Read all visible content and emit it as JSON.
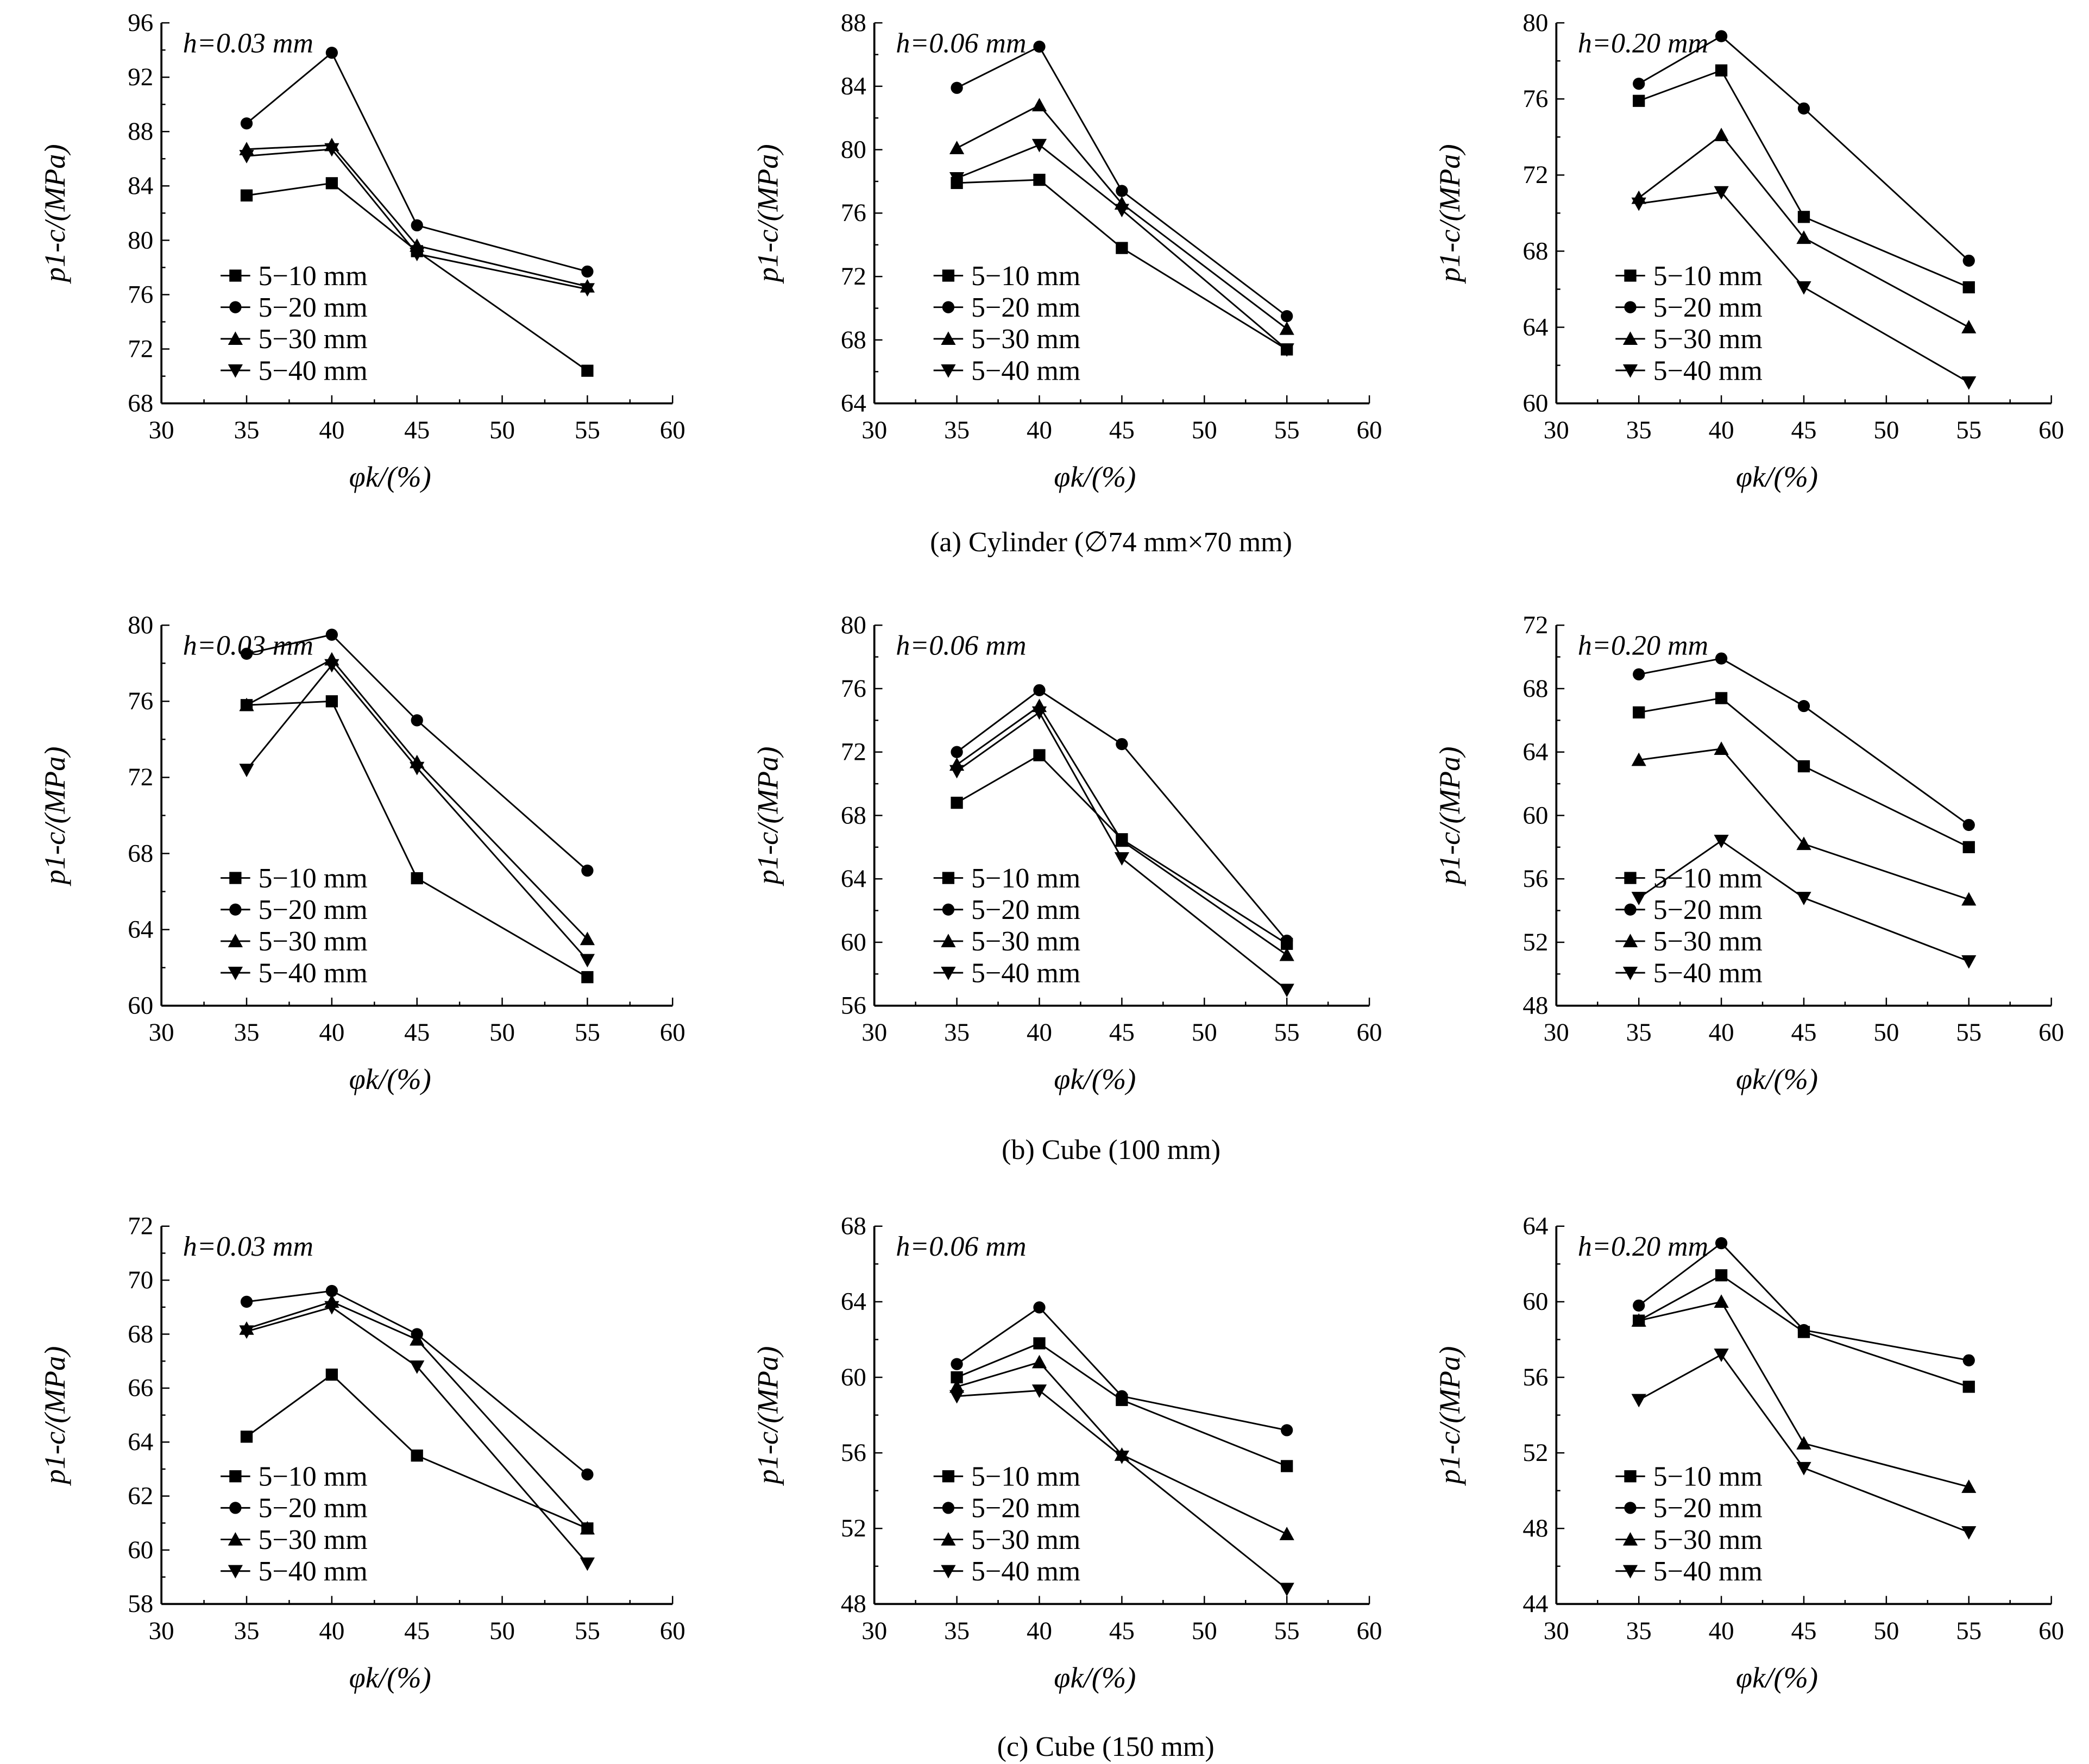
{
  "chart_data": [
    {
      "type": "line",
      "row": 0,
      "annotation": "h=0.03 mm",
      "ylim": [
        68,
        96
      ],
      "yticks": [
        68,
        72,
        76,
        80,
        84,
        88,
        92,
        96
      ],
      "series": [
        {
          "name": "5−10 mm",
          "values": [
            83.3,
            84.2,
            79.2,
            70.4
          ]
        },
        {
          "name": "5−20 mm",
          "values": [
            88.6,
            93.8,
            81.1,
            77.7
          ]
        },
        {
          "name": "5−30 mm",
          "values": [
            86.7,
            87.0,
            79.6,
            76.6
          ]
        },
        {
          "name": "5−40 mm",
          "values": [
            86.2,
            86.7,
            79.0,
            76.4
          ]
        }
      ]
    },
    {
      "type": "line",
      "row": 0,
      "annotation": "h=0.06 mm",
      "ylim": [
        64,
        88
      ],
      "yticks": [
        64,
        68,
        72,
        76,
        80,
        84,
        88
      ],
      "series": [
        {
          "name": "5−10 mm",
          "values": [
            77.9,
            78.1,
            73.8,
            67.4
          ]
        },
        {
          "name": "5−20 mm",
          "values": [
            83.9,
            86.5,
            77.4,
            69.5
          ]
        },
        {
          "name": "5−30 mm",
          "values": [
            80.1,
            82.8,
            76.6,
            68.7
          ]
        },
        {
          "name": "5−40 mm",
          "values": [
            78.2,
            80.3,
            76.2,
            67.4
          ]
        }
      ]
    },
    {
      "type": "line",
      "row": 0,
      "annotation": "h=0.20 mm",
      "ylim": [
        60,
        80
      ],
      "yticks": [
        60,
        64,
        68,
        72,
        76,
        80
      ],
      "series": [
        {
          "name": "5−10 mm",
          "values": [
            75.9,
            77.5,
            69.8,
            66.1
          ]
        },
        {
          "name": "5−20 mm",
          "values": [
            76.8,
            79.3,
            75.5,
            67.5
          ]
        },
        {
          "name": "5−30 mm",
          "values": [
            70.8,
            74.1,
            68.7,
            64.0
          ]
        },
        {
          "name": "5−40 mm",
          "values": [
            70.5,
            71.1,
            66.1,
            61.1
          ]
        }
      ]
    },
    {
      "type": "line",
      "row": 1,
      "annotation": "h=0.03 mm",
      "ylim": [
        60,
        80
      ],
      "yticks": [
        60,
        64,
        68,
        72,
        76,
        80
      ],
      "series": [
        {
          "name": "5−10 mm",
          "values": [
            75.8,
            76.0,
            66.7,
            61.5
          ]
        },
        {
          "name": "5−20 mm",
          "values": [
            78.5,
            79.5,
            75.0,
            67.1
          ]
        },
        {
          "name": "5−30 mm",
          "values": [
            75.8,
            78.2,
            72.8,
            63.5
          ]
        },
        {
          "name": "5−40 mm",
          "values": [
            72.4,
            77.9,
            72.5,
            62.4
          ]
        }
      ]
    },
    {
      "type": "line",
      "row": 1,
      "annotation": "h=0.06 mm",
      "ylim": [
        56,
        80
      ],
      "yticks": [
        56,
        60,
        64,
        68,
        72,
        76,
        80
      ],
      "series": [
        {
          "name": "5−10 mm",
          "values": [
            68.8,
            71.8,
            66.5,
            59.9
          ]
        },
        {
          "name": "5−20 mm",
          "values": [
            72.0,
            75.9,
            72.5,
            60.1
          ]
        },
        {
          "name": "5−30 mm",
          "values": [
            71.2,
            74.9,
            66.4,
            59.2
          ]
        },
        {
          "name": "5−40 mm",
          "values": [
            70.8,
            74.5,
            65.3,
            57.0
          ]
        }
      ]
    },
    {
      "type": "line",
      "row": 1,
      "annotation": "h=0.20 mm",
      "ylim": [
        48,
        72
      ],
      "yticks": [
        48,
        52,
        56,
        60,
        64,
        68,
        72
      ],
      "series": [
        {
          "name": "5−10 mm",
          "values": [
            66.5,
            67.4,
            63.1,
            58.0
          ]
        },
        {
          "name": "5−20 mm",
          "values": [
            68.9,
            69.9,
            66.9,
            59.4
          ]
        },
        {
          "name": "5−30 mm",
          "values": [
            63.5,
            64.2,
            58.2,
            54.7
          ]
        },
        {
          "name": "5−40 mm",
          "values": [
            54.8,
            58.4,
            54.8,
            50.8
          ]
        }
      ]
    },
    {
      "type": "line",
      "row": 2,
      "annotation": "h=0.03 mm",
      "ylim": [
        58,
        72
      ],
      "yticks": [
        58,
        60,
        62,
        64,
        66,
        68,
        70,
        72
      ],
      "series": [
        {
          "name": "5−10 mm",
          "values": [
            64.2,
            66.5,
            63.5,
            60.8
          ]
        },
        {
          "name": "5−20 mm",
          "values": [
            69.2,
            69.6,
            68.0,
            62.8
          ]
        },
        {
          "name": "5−30 mm",
          "values": [
            68.2,
            69.2,
            67.8,
            60.8
          ]
        },
        {
          "name": "5−40 mm",
          "values": [
            68.1,
            69.0,
            66.8,
            59.5
          ]
        }
      ]
    },
    {
      "type": "line",
      "row": 2,
      "annotation": "h=0.06 mm",
      "ylim": [
        48,
        68
      ],
      "yticks": [
        48,
        52,
        56,
        60,
        64,
        68
      ],
      "series": [
        {
          "name": "5−10 mm",
          "values": [
            60.0,
            61.8,
            58.8,
            55.3
          ]
        },
        {
          "name": "5−20 mm",
          "values": [
            60.7,
            63.7,
            59.0,
            57.2
          ]
        },
        {
          "name": "5−30 mm",
          "values": [
            59.5,
            60.8,
            55.9,
            51.7
          ]
        },
        {
          "name": "5−40 mm",
          "values": [
            59.0,
            59.3,
            55.8,
            48.8
          ]
        }
      ]
    },
    {
      "type": "line",
      "row": 2,
      "annotation": "h=0.20 mm",
      "ylim": [
        44,
        64
      ],
      "yticks": [
        44,
        48,
        52,
        56,
        60,
        64
      ],
      "series": [
        {
          "name": "5−10 mm",
          "values": [
            59.0,
            61.4,
            58.4,
            55.5
          ]
        },
        {
          "name": "5−20 mm",
          "values": [
            59.8,
            63.1,
            58.5,
            56.9
          ]
        },
        {
          "name": "5−30 mm",
          "values": [
            59.0,
            60.0,
            52.5,
            50.2
          ]
        },
        {
          "name": "5−40 mm",
          "values": [
            54.8,
            57.2,
            51.2,
            47.8
          ]
        }
      ]
    }
  ],
  "shared": {
    "x": [
      35,
      40,
      45,
      55
    ],
    "xlim": [
      30,
      60
    ],
    "xticks": [
      30,
      35,
      40,
      45,
      50,
      55,
      60
    ],
    "xlabel": "φk/(%)",
    "ylabel": "p1-c/(MPa)",
    "markers": [
      "square",
      "circle",
      "triangle-up",
      "triangle-down"
    ],
    "legend_placement": "bottom-left",
    "grid": false
  },
  "captions": [
    "(a) Cylinder (∅74 mm×70 mm)",
    "(b) Cube (100 mm)",
    "(c) Cube (150 mm)"
  ]
}
